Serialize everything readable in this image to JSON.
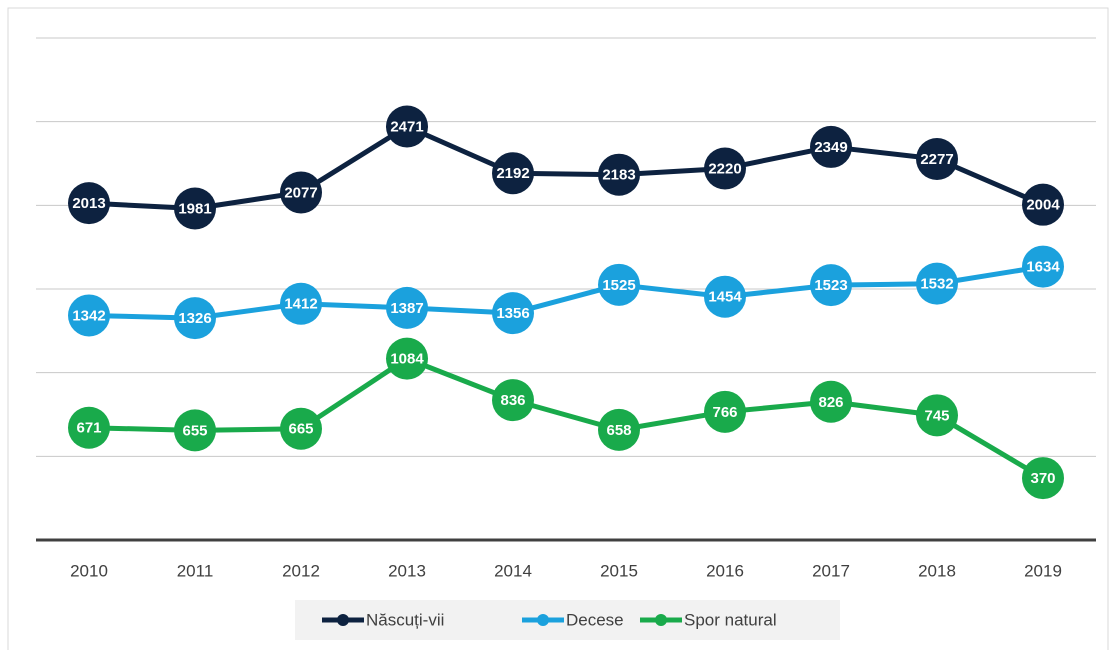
{
  "chart_data": {
    "type": "line",
    "categories": [
      "2010",
      "2011",
      "2012",
      "2013",
      "2014",
      "2015",
      "2016",
      "2017",
      "2018",
      "2019"
    ],
    "series": [
      {
        "name": "Născuți-vii",
        "color": "#0d2240",
        "values": [
          2013,
          1981,
          2077,
          2471,
          2192,
          2183,
          2220,
          2349,
          2277,
          2004
        ]
      },
      {
        "name": "Decese",
        "color": "#1ba1dd",
        "values": [
          1342,
          1326,
          1412,
          1387,
          1356,
          1525,
          1454,
          1523,
          1532,
          1634
        ]
      },
      {
        "name": "Spor natural",
        "color": "#19aa4b",
        "values": [
          671,
          655,
          665,
          1084,
          836,
          658,
          766,
          826,
          745,
          370
        ]
      }
    ],
    "ylim": [
      0,
      3000
    ],
    "yticks": [
      0,
      500,
      1000,
      1500,
      2000,
      2500,
      3000
    ],
    "grid": true,
    "legend": "bottom"
  }
}
